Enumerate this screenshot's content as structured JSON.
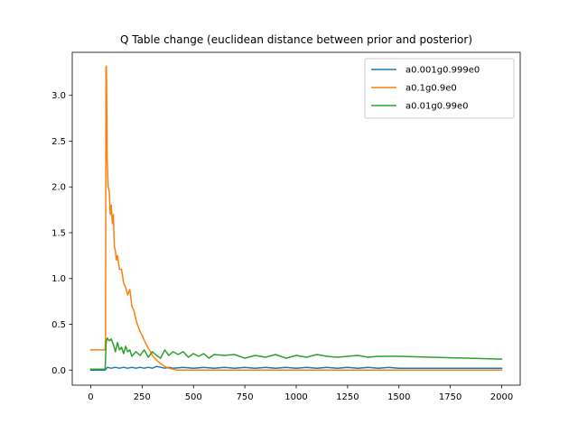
{
  "chart_data": {
    "type": "line",
    "title": "Q Table change (euclidean distance between prior and posterior)",
    "xlabel": "",
    "ylabel": "",
    "xlim": [
      -90,
      2090
    ],
    "ylim": [
      -0.165,
      3.47
    ],
    "x_ticks": [
      0,
      250,
      500,
      750,
      1000,
      1250,
      1500,
      1750,
      2000
    ],
    "x_tick_labels": [
      "0",
      "250",
      "500",
      "750",
      "1000",
      "1250",
      "1500",
      "1750",
      "2000"
    ],
    "y_ticks": [
      0.0,
      0.5,
      1.0,
      1.5,
      2.0,
      2.5,
      3.0
    ],
    "y_tick_labels": [
      "0.0",
      "0.5",
      "1.0",
      "1.5",
      "2.0",
      "2.5",
      "3.0"
    ],
    "grid": false,
    "legend_position": "upper right",
    "series": [
      {
        "name": "a0.001g0.999e0",
        "color": "#1f77b4",
        "x": [
          0,
          70,
          80,
          100,
          120,
          140,
          160,
          180,
          200,
          220,
          240,
          260,
          280,
          300,
          320,
          340,
          360,
          380,
          400,
          450,
          500,
          550,
          600,
          650,
          700,
          750,
          800,
          850,
          900,
          950,
          1000,
          1050,
          1100,
          1150,
          1200,
          1250,
          1300,
          1350,
          1400,
          1450,
          1500,
          1600,
          1700,
          1800,
          1900,
          2000
        ],
        "y": [
          0.0,
          0.0,
          0.03,
          0.02,
          0.03,
          0.02,
          0.03,
          0.02,
          0.03,
          0.02,
          0.03,
          0.02,
          0.03,
          0.02,
          0.04,
          0.03,
          0.02,
          0.03,
          0.02,
          0.03,
          0.02,
          0.03,
          0.02,
          0.03,
          0.02,
          0.03,
          0.02,
          0.03,
          0.02,
          0.03,
          0.02,
          0.03,
          0.02,
          0.03,
          0.02,
          0.03,
          0.02,
          0.03,
          0.02,
          0.03,
          0.02,
          0.02,
          0.02,
          0.02,
          0.02,
          0.02
        ]
      },
      {
        "name": "a0.1g0.9e0",
        "color": "#ff7f0e",
        "x": [
          0,
          70,
          72,
          74,
          76,
          80,
          85,
          90,
          95,
          100,
          105,
          110,
          115,
          120,
          125,
          130,
          140,
          150,
          160,
          170,
          180,
          190,
          200,
          210,
          220,
          230,
          240,
          250,
          260,
          270,
          280,
          290,
          300,
          320,
          340,
          360,
          380,
          400,
          420,
          450,
          500,
          600,
          800,
          1000,
          1250,
          1500,
          1750,
          2000
        ],
        "y": [
          0.22,
          0.22,
          0.4,
          3.3,
          3.32,
          2.3,
          2.0,
          1.95,
          1.7,
          1.8,
          1.6,
          1.7,
          1.35,
          1.3,
          1.2,
          1.25,
          1.1,
          1.1,
          0.95,
          0.9,
          0.82,
          0.88,
          0.7,
          0.65,
          0.55,
          0.48,
          0.42,
          0.38,
          0.33,
          0.28,
          0.24,
          0.2,
          0.16,
          0.11,
          0.07,
          0.04,
          0.02,
          0.01,
          0.0,
          0.0,
          0.0,
          0.0,
          0.0,
          0.0,
          0.0,
          0.0,
          0.0,
          0.0
        ]
      },
      {
        "name": "a0.01g0.99e0",
        "color": "#2ca02c",
        "x": [
          0,
          70,
          75,
          80,
          90,
          100,
          110,
          120,
          130,
          140,
          150,
          160,
          170,
          180,
          190,
          200,
          220,
          240,
          260,
          280,
          300,
          320,
          340,
          360,
          380,
          400,
          425,
          450,
          475,
          500,
          525,
          550,
          575,
          600,
          650,
          700,
          750,
          800,
          850,
          900,
          950,
          1000,
          1050,
          1100,
          1150,
          1200,
          1250,
          1300,
          1350,
          1400,
          1450,
          1500,
          2000
        ],
        "y": [
          0.01,
          0.01,
          0.3,
          0.35,
          0.32,
          0.34,
          0.28,
          0.2,
          0.3,
          0.22,
          0.25,
          0.18,
          0.26,
          0.2,
          0.22,
          0.15,
          0.2,
          0.16,
          0.22,
          0.14,
          0.2,
          0.16,
          0.13,
          0.22,
          0.16,
          0.2,
          0.17,
          0.2,
          0.14,
          0.18,
          0.15,
          0.18,
          0.13,
          0.17,
          0.16,
          0.17,
          0.13,
          0.16,
          0.14,
          0.17,
          0.13,
          0.16,
          0.14,
          0.17,
          0.15,
          0.14,
          0.15,
          0.16,
          0.14,
          0.15,
          0.15,
          0.15,
          0.12
        ]
      }
    ]
  }
}
